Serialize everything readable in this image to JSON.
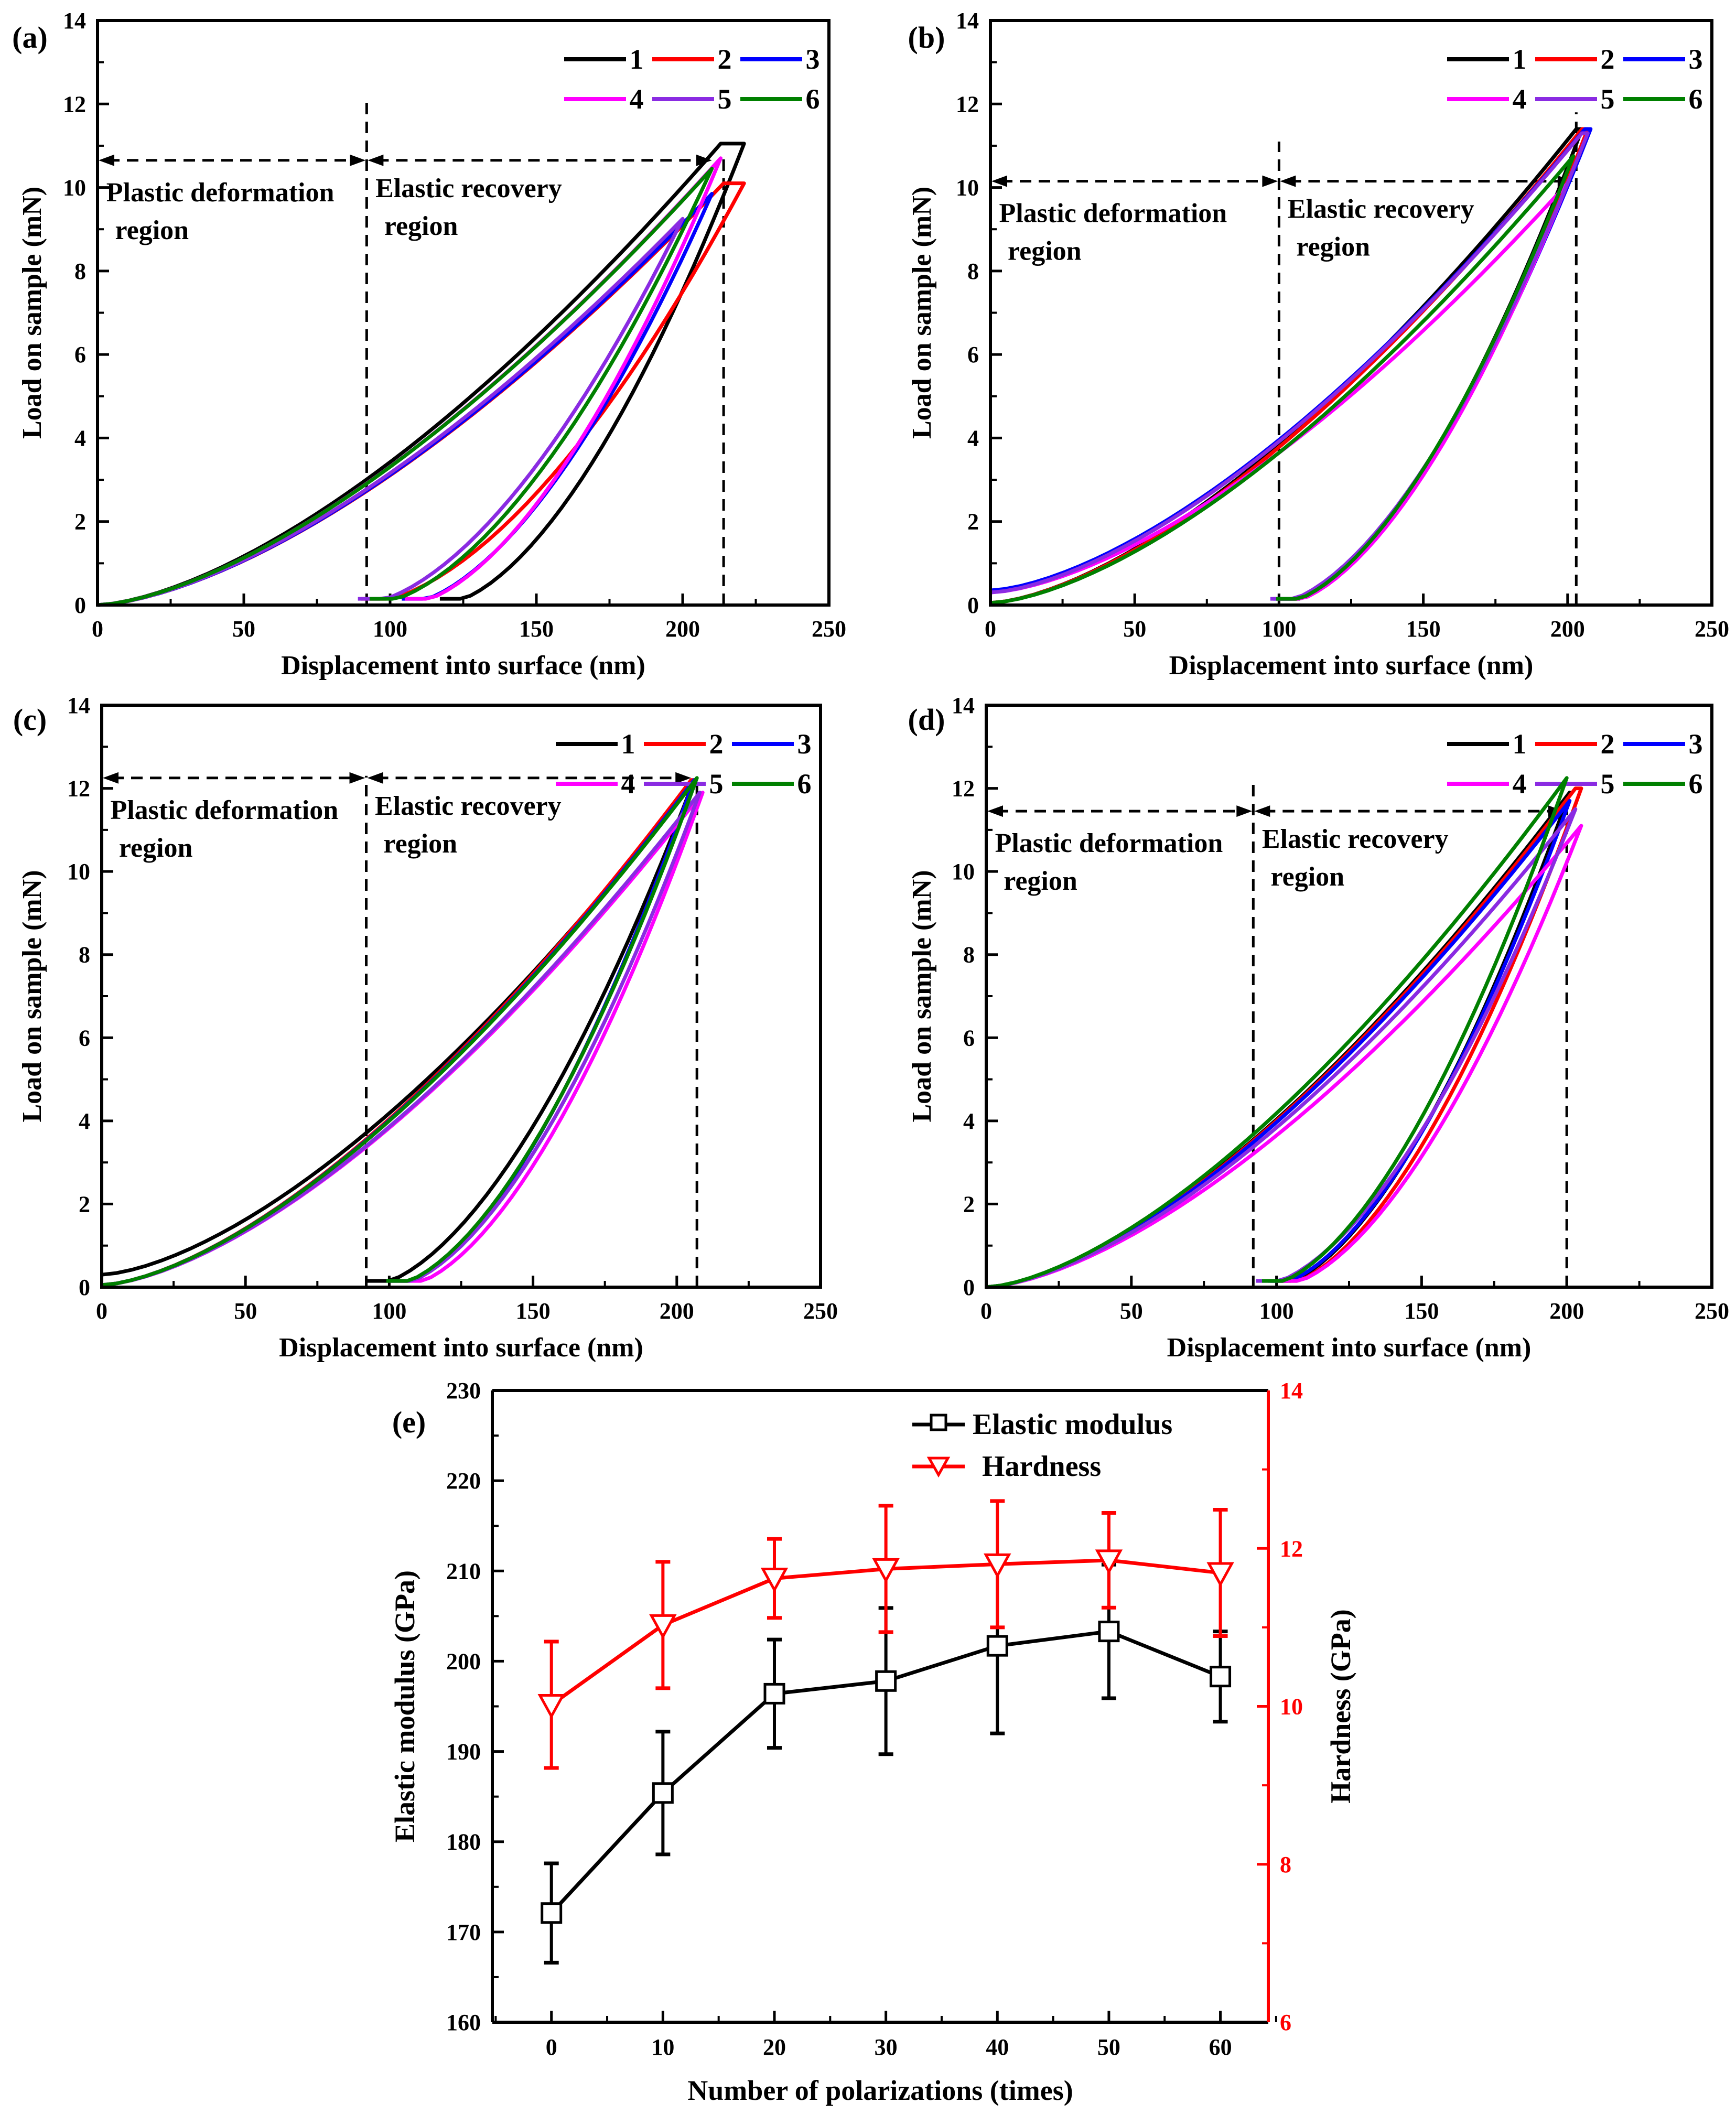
{
  "chart_data": [
    {
      "type": "line",
      "panel_label": "(a)",
      "xlabel": "Displacement into surface (nm)",
      "ylabel": "Load on sample (mN)",
      "xlim": [
        0,
        250
      ],
      "ylim": [
        0,
        14
      ],
      "xticks": [
        0,
        50,
        100,
        150,
        200,
        250
      ],
      "yticks": [
        0,
        2,
        4,
        6,
        8,
        10,
        12,
        14
      ],
      "curve_params_note": "per series: [load_end_depth_nm, max_depth_nm, max_load_mN, final_depth_nm, initial_load_mN]",
      "series": [
        {
          "name": "1",
          "color": "#000000",
          "params": [
            213,
            221,
            11.05,
            117,
            0
          ]
        },
        {
          "name": "2",
          "color": "#ff0000",
          "params": [
            214,
            221,
            10.1,
            90,
            0
          ]
        },
        {
          "name": "3",
          "color": "#0000ff",
          "params": [
            210,
            210,
            9.85,
            104,
            0
          ]
        },
        {
          "name": "4",
          "color": "#ff00ff",
          "params": [
            213,
            213,
            10.7,
            105,
            0
          ]
        },
        {
          "name": "5",
          "color": "#8a2be2",
          "params": [
            200,
            200,
            9.25,
            89,
            0
          ]
        },
        {
          "name": "6",
          "color": "#008000",
          "params": [
            210,
            210,
            10.45,
            93,
            0
          ]
        }
      ],
      "annotations": {
        "boundary_depth": 92,
        "boundary_top": 12.1,
        "max_depth_line": 214,
        "max_depth_top": 10.7,
        "arrow_load": 10.65,
        "arrow_end": 210,
        "plastic_line1": "Plastic deformation",
        "plastic_line2": "region",
        "elastic_line1": "Elastic recovery",
        "elastic_line2": "region"
      }
    },
    {
      "type": "line",
      "panel_label": "(b)",
      "xlabel": "Displacement into surface (nm)",
      "ylabel": "Load on sample (mN)",
      "xlim": [
        0,
        250
      ],
      "ylim": [
        0,
        14
      ],
      "xticks": [
        0,
        50,
        100,
        150,
        200,
        250
      ],
      "yticks": [
        0,
        2,
        4,
        6,
        8,
        10,
        12,
        14
      ],
      "series": [
        {
          "name": "1",
          "color": "#000000",
          "params": [
            203,
            205,
            11.4,
            100,
            0.05
          ]
        },
        {
          "name": "2",
          "color": "#ff0000",
          "params": [
            205,
            207,
            11.4,
            99,
            0.05
          ]
        },
        {
          "name": "3",
          "color": "#0000ff",
          "params": [
            206,
            208,
            11.4,
            98,
            0.35
          ]
        },
        {
          "name": "4",
          "color": "#ff00ff",
          "params": [
            200,
            200,
            10.1,
            100,
            0.3
          ]
        },
        {
          "name": "5",
          "color": "#8a2be2",
          "params": [
            205,
            207,
            11.3,
            97,
            0.3
          ]
        },
        {
          "name": "6",
          "color": "#008000",
          "params": [
            202,
            202,
            10.75,
            99,
            0.05
          ]
        }
      ],
      "annotations": {
        "boundary_depth": 100,
        "boundary_top": 11.1,
        "max_depth_line": 203,
        "max_depth_top": 11.8,
        "arrow_load": 10.15,
        "arrow_end": 202,
        "plastic_line1": "Plastic deformation",
        "plastic_line2": "region",
        "elastic_line1": "Elastic recovery",
        "elastic_line2": "region"
      }
    },
    {
      "type": "line",
      "panel_label": "(c)",
      "xlabel": "Displacement into surface (nm)",
      "ylabel": "Load on sample (mN)",
      "xlim": [
        0,
        250
      ],
      "ylim": [
        0,
        14
      ],
      "xticks": [
        0,
        50,
        100,
        150,
        200,
        250
      ],
      "yticks": [
        0,
        2,
        4,
        6,
        8,
        10,
        12,
        14
      ],
      "series": [
        {
          "name": "1",
          "color": "#000000",
          "params": [
            206,
            206,
            12.2,
            92,
            0.3
          ]
        },
        {
          "name": "2",
          "color": "#ff0000",
          "params": [
            205,
            206,
            12.2,
            100,
            0.05
          ]
        },
        {
          "name": "3",
          "color": "#0000ff",
          "params": [
            206,
            206,
            12.2,
            100,
            0.05
          ]
        },
        {
          "name": "4",
          "color": "#ff00ff",
          "params": [
            209,
            209,
            11.9,
            104,
            0.05
          ]
        },
        {
          "name": "5",
          "color": "#8a2be2",
          "params": [
            208,
            208,
            11.9,
            100,
            0.05
          ]
        },
        {
          "name": "6",
          "color": "#008000",
          "params": [
            207,
            207,
            12.25,
            99,
            0.05
          ]
        }
      ],
      "annotations": {
        "boundary_depth": 92,
        "boundary_top": 12.3,
        "max_depth_line": 207,
        "max_depth_top": 12.2,
        "arrow_load": 12.25,
        "arrow_end": 205,
        "plastic_line1": "Plastic deformation",
        "plastic_line2": "region",
        "elastic_line1": "Elastic recovery",
        "elastic_line2": "region"
      }
    },
    {
      "type": "line",
      "panel_label": "(d)",
      "xlabel": "Displacement into surface (nm)",
      "ylabel": "Load on sample (mN)",
      "xlim": [
        0,
        250
      ],
      "ylim": [
        0,
        14
      ],
      "xticks": [
        0,
        50,
        100,
        150,
        200,
        250
      ],
      "yticks": [
        0,
        2,
        4,
        6,
        8,
        10,
        12,
        14
      ],
      "series": [
        {
          "name": "1",
          "color": "#000000",
          "params": [
            201,
            201,
            11.9,
            98,
            0
          ]
        },
        {
          "name": "2",
          "color": "#ff0000",
          "params": [
            203,
            205,
            12.0,
            100,
            0
          ]
        },
        {
          "name": "3",
          "color": "#0000ff",
          "params": [
            201,
            201,
            11.7,
            97,
            0
          ]
        },
        {
          "name": "4",
          "color": "#ff00ff",
          "params": [
            205,
            205,
            11.1,
            100,
            0
          ]
        },
        {
          "name": "5",
          "color": "#8a2be2",
          "params": [
            203,
            203,
            11.5,
            93,
            0
          ]
        },
        {
          "name": "6",
          "color": "#008000",
          "params": [
            200,
            200,
            12.25,
            95,
            0
          ]
        }
      ],
      "annotations": {
        "boundary_depth": 92,
        "boundary_top": 12.1,
        "max_depth_line": 200,
        "max_depth_top": 11.5,
        "arrow_load": 11.45,
        "arrow_end": 199,
        "plastic_line1": "Plastic deformation",
        "plastic_line2": "region",
        "elastic_line1": "Elastic recovery",
        "elastic_line2": "region"
      }
    },
    {
      "type": "line",
      "panel_label": "(e)",
      "xlabel": "Number of polarizations (times)",
      "ylabel": "Elastic modulus (GPa)",
      "ylabel_right": "Hardness (GPa)",
      "x": [
        0,
        10,
        20,
        30,
        40,
        50,
        60
      ],
      "xlim": [
        -5.3,
        64.3
      ],
      "ylim": [
        160,
        230
      ],
      "ylim_right": [
        6,
        14
      ],
      "xticks": [
        0,
        10,
        20,
        30,
        40,
        50,
        60
      ],
      "yticks": [
        160,
        170,
        180,
        190,
        200,
        210,
        220,
        230
      ],
      "yticks_right": [
        6,
        8,
        10,
        12,
        14
      ],
      "legend_position": "top-right",
      "series": [
        {
          "name": "Elastic modulus",
          "axis": "left",
          "color": "#000000",
          "marker": "square",
          "values": [
            172.1,
            185.4,
            196.4,
            197.8,
            201.7,
            203.3,
            198.3
          ],
          "errors": [
            5.5,
            6.8,
            6.0,
            8.1,
            9.7,
            7.4,
            5.0
          ]
        },
        {
          "name": "Hardness",
          "axis": "right",
          "color": "#ff0000",
          "marker": "triangle-down",
          "values": [
            10.02,
            11.03,
            11.62,
            11.74,
            11.8,
            11.85,
            11.69
          ],
          "errors": [
            0.8,
            0.8,
            0.5,
            0.8,
            0.8,
            0.6,
            0.8
          ]
        }
      ]
    }
  ]
}
